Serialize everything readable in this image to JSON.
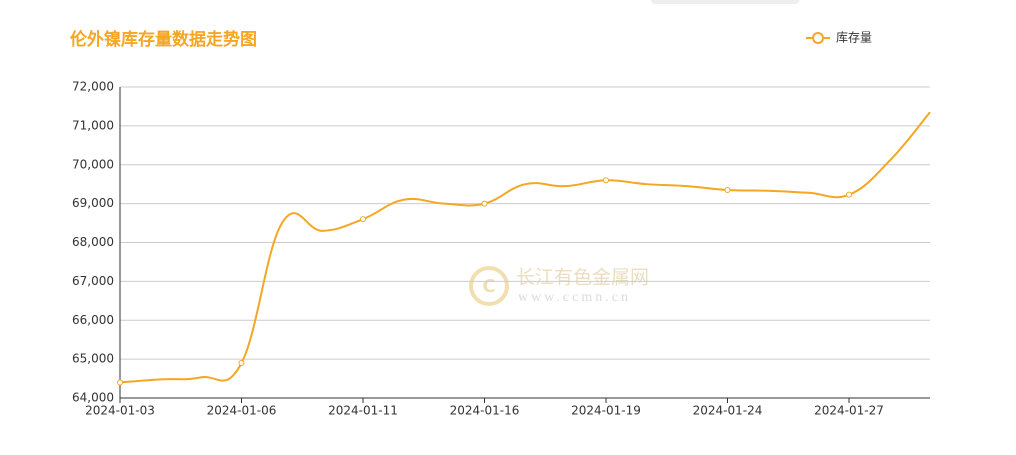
{
  "chart_data": {
    "type": "line",
    "title": "伦外镍库存量数据走势图",
    "watermark": {
      "name": "长江有色金属网",
      "url": "www.ccmn.cn"
    },
    "categories": [
      "2024-01-03",
      null,
      null,
      "2024-01-06",
      null,
      null,
      "2024-01-11",
      null,
      null,
      "2024-01-16",
      null,
      null,
      "2024-01-19",
      null,
      null,
      "2024-01-24",
      null,
      null,
      "2024-01-27",
      null,
      null
    ],
    "series": [
      {
        "name": "库存量",
        "color": "#f5a623",
        "values": [
          64400,
          64480,
          64530,
          64900,
          68500,
          68300,
          68600,
          69100,
          69000,
          69000,
          69500,
          69450,
          69600,
          69500,
          69450,
          69350,
          69330,
          69280,
          69230,
          70100,
          71350
        ]
      }
    ],
    "ylim": [
      64000,
      72000
    ],
    "yticks": [
      {
        "value": 64000,
        "label": "64,000"
      },
      {
        "value": 65000,
        "label": "65,000"
      },
      {
        "value": 66000,
        "label": "66,000"
      },
      {
        "value": 67000,
        "label": "67,000"
      },
      {
        "value": 68000,
        "label": "68,000"
      },
      {
        "value": 69000,
        "label": "69,000"
      },
      {
        "value": 70000,
        "label": "70,000"
      },
      {
        "value": 71000,
        "label": "71,000"
      },
      {
        "value": 72000,
        "label": "72,000"
      }
    ],
    "grid": true,
    "legend": "top-right"
  }
}
